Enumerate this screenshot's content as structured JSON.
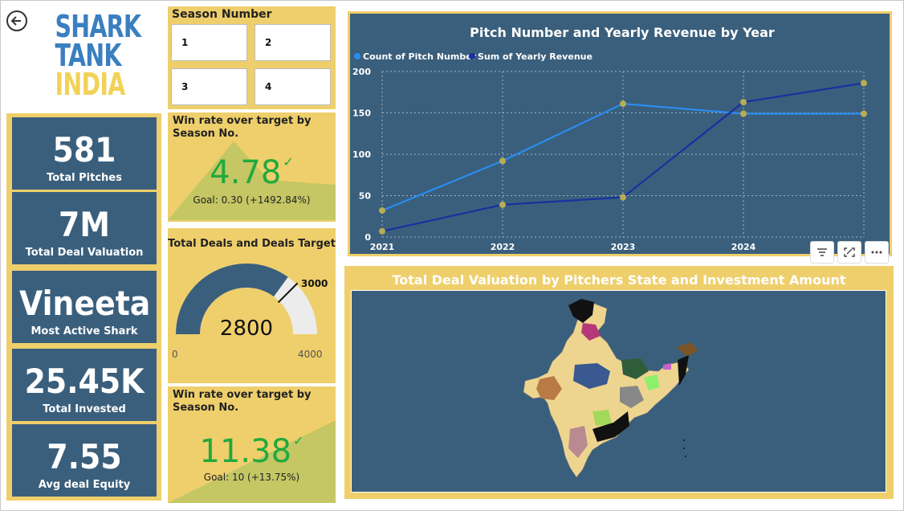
{
  "header": {
    "back_icon": "back-arrow-icon"
  },
  "logo": {
    "line1": "SHARK",
    "line2": "TANK",
    "line3": "INDIA"
  },
  "kpis": [
    {
      "value": "581",
      "label": "Total Pitches"
    },
    {
      "value": "7M",
      "label": "Total Deal Valuation"
    },
    {
      "value": "Vineeta",
      "label": "Most Active Shark"
    },
    {
      "value": "25.45K",
      "label": "Total Invested"
    },
    {
      "value": "7.55",
      "label": "Avg deal Equity"
    }
  ],
  "season_slicer": {
    "title": "Season Number",
    "options": [
      "1",
      "2",
      "3",
      "4"
    ]
  },
  "win_rate_1": {
    "title": "Win rate over target by Season No.",
    "value": "4.78",
    "goal": "Goal: 0.30 (+1492.84%)"
  },
  "gauge": {
    "title": "Total Deals and Deals Target",
    "value": "2800",
    "target": "3000",
    "min": "0",
    "max": "4000",
    "fill_fraction": 0.7,
    "target_fraction": 0.75
  },
  "win_rate_2": {
    "title": "Win rate over target by Season No.",
    "value": "11.38",
    "goal": "Goal: 10 (+13.75%)"
  },
  "line_chart": {
    "title": "Pitch Number and Yearly Revenue by Year",
    "legend": [
      "Count of Pitch Number",
      "Sum of Yearly Revenue"
    ]
  },
  "chart_data": {
    "type": "line",
    "title": "Pitch Number and Yearly Revenue by Year",
    "x": [
      "2021",
      "2022",
      "2023",
      "2024",
      ""
    ],
    "yticks": [
      "0",
      "50",
      "100",
      "150",
      "200"
    ],
    "ylim": [
      0,
      200
    ],
    "grid": true,
    "legend_position": "top-left",
    "series": [
      {
        "name": "Count of Pitch Number",
        "color": "#2b8cf0",
        "values": [
          32,
          92,
          161,
          149,
          149
        ]
      },
      {
        "name": "Sum of Yearly Revenue",
        "color": "#1a2fa0",
        "values": [
          7,
          39,
          48,
          163,
          186
        ]
      }
    ]
  },
  "toolbar": {
    "icons": [
      "filter-icon",
      "focus-mode-icon",
      "more-options-icon"
    ]
  },
  "map": {
    "title": "Total Deal Valuation by Pitchers State and Investment Amount"
  },
  "colors": {
    "yellow": "#efcf6b",
    "navy": "#3a5f7c",
    "green": "#21a93e",
    "olive": "#c4c764"
  }
}
